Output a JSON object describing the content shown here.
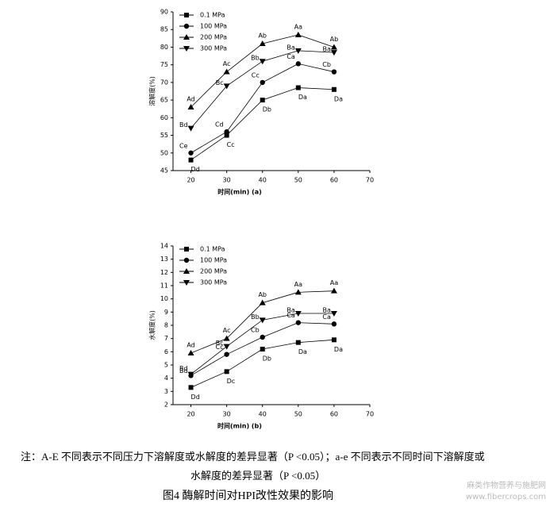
{
  "chart_data": [
    {
      "type": "line",
      "ylabel": "溶解度(%)",
      "xlabel": "时间(min) (a)",
      "x": [
        20,
        30,
        40,
        50,
        60
      ],
      "xlim": [
        15,
        70
      ],
      "xticks": [
        20,
        30,
        40,
        50,
        60,
        70
      ],
      "ylim": [
        45,
        90
      ],
      "yticks": [
        45,
        50,
        55,
        60,
        65,
        70,
        75,
        80,
        85,
        90
      ],
      "series": [
        {
          "name": "0.1 MPa",
          "color": "#000000",
          "marker": "square",
          "values": [
            48,
            55,
            65,
            68.5,
            68
          ],
          "point_labels": [
            "Dd",
            "Cc",
            "Db",
            "Da",
            "Da"
          ]
        },
        {
          "name": "100 MPa",
          "color": "#000000",
          "marker": "circle",
          "values": [
            50,
            56,
            70,
            75.3,
            73
          ],
          "point_labels": [
            "Ce",
            "Cd",
            "Cc",
            "Ca",
            "Cb"
          ]
        },
        {
          "name": "200 MPa",
          "color": "#000000",
          "marker": "triangle-up",
          "values": [
            63,
            73,
            81,
            83.5,
            80
          ],
          "point_labels": [
            "Ad",
            "Ac",
            "Ab",
            "Aa",
            "Ab"
          ]
        },
        {
          "name": "300 MPa",
          "color": "#000000",
          "marker": "triangle-down",
          "values": [
            57,
            69,
            76,
            79,
            78.5
          ],
          "point_labels": [
            "Bd",
            "Bc",
            "Bb",
            "Ba",
            "Ba"
          ]
        }
      ]
    },
    {
      "type": "line",
      "ylabel": "水解度(%)",
      "xlabel": "时间(min) (b)",
      "x": [
        20,
        30,
        40,
        50,
        60
      ],
      "xlim": [
        15,
        70
      ],
      "xticks": [
        20,
        30,
        40,
        50,
        60,
        70
      ],
      "ylim": [
        2,
        14
      ],
      "yticks": [
        2,
        3,
        4,
        5,
        6,
        7,
        8,
        9,
        10,
        11,
        12,
        13,
        14
      ],
      "series": [
        {
          "name": "0.1 MPa",
          "color": "#000000",
          "marker": "square",
          "values": [
            3.3,
            4.5,
            6.2,
            6.7,
            6.9
          ],
          "point_labels": [
            "Dd",
            "Dc",
            "Db",
            "Da",
            "Da"
          ]
        },
        {
          "name": "100 MPa",
          "color": "#000000",
          "marker": "circle",
          "values": [
            4.2,
            5.8,
            7.1,
            8.2,
            8.1
          ],
          "point_labels": [
            "Bd",
            "Cc",
            "Cb",
            "Ca",
            "Ca"
          ]
        },
        {
          "name": "200 MPa",
          "color": "#000000",
          "marker": "triangle-up",
          "values": [
            5.9,
            7.0,
            9.7,
            10.5,
            10.6
          ],
          "point_labels": [
            "Ad",
            "Ac",
            "Ab",
            "Aa",
            "Aa"
          ]
        },
        {
          "name": "300 MPa",
          "color": "#000000",
          "marker": "triangle-down",
          "values": [
            4.3,
            6.4,
            8.4,
            8.9,
            8.9
          ],
          "point_labels": [
            "Bd",
            "Bc",
            "Bb",
            "Ba",
            "Ba"
          ]
        }
      ]
    }
  ],
  "note": [
    "注：A-E 不同表示不同压力下溶解度或水解度的差异显著（P <0.05）；a-e 不同表示不同时间下溶解度或",
    "水解度的差异显著（P <0.05）"
  ],
  "caption": "图4 酶解时间对HPI改性效果的影响",
  "watermark": [
    "麻类作物营养与施肥网",
    "www.fibercrops.com"
  ]
}
